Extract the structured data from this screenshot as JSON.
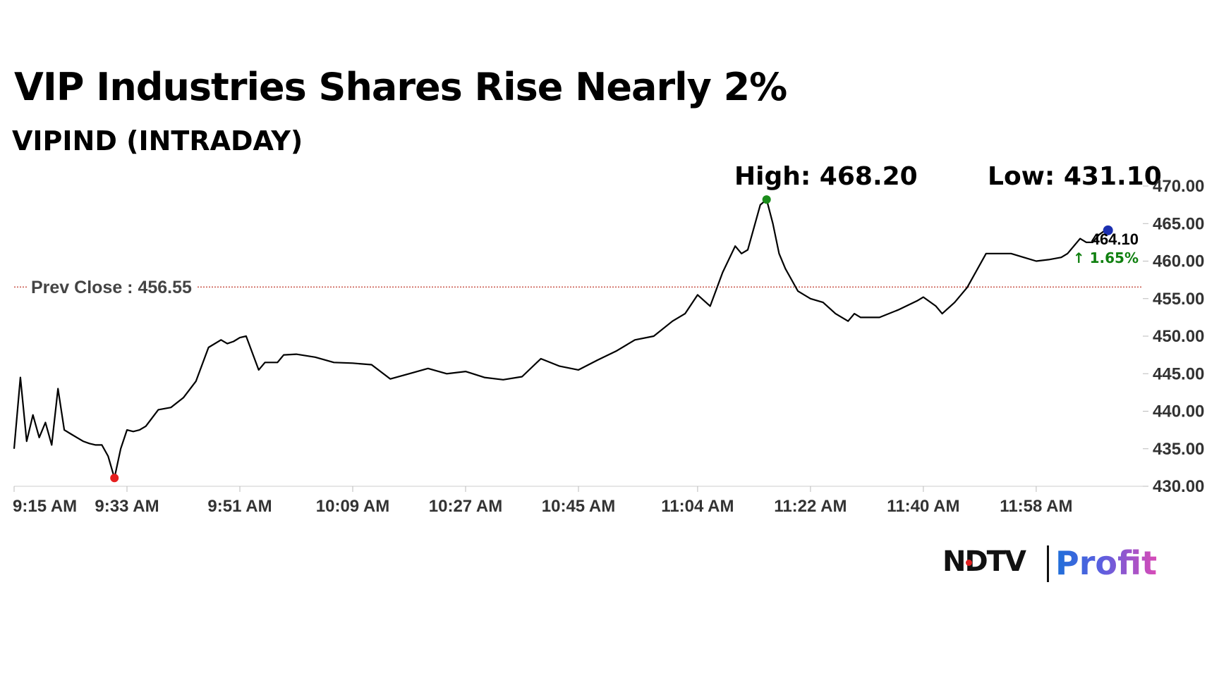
{
  "header": {
    "title": "VIP Industries Shares Rise Nearly 2%",
    "subtitle": "VIPIND (INTRADAY)",
    "high_label": "High: 468.20",
    "low_label": "Low: 431.10"
  },
  "brand": {
    "ndtv": "NDTV",
    "profit": "Profit"
  },
  "colors": {
    "line": "#000000",
    "prev_close": "#c0392b",
    "up": "#108010",
    "high_marker": "#1a8c1a",
    "low_marker": "#e62020",
    "last_marker": "#1b2fb0",
    "axis_text": "#333333"
  },
  "chart_data": {
    "type": "line",
    "title": "VIP Industries Shares Rise Nearly 2%",
    "subtitle": "VIPIND (INTRADAY)",
    "xlabel": "",
    "ylabel": "",
    "ylim": [
      430,
      470
    ],
    "yticks": [
      "470.00",
      "465.00",
      "460.00",
      "455.00",
      "450.00",
      "445.00",
      "440.00",
      "435.00",
      "430.00"
    ],
    "xticks": [
      "9:15 AM",
      "9:33 AM",
      "9:51 AM",
      "10:09 AM",
      "10:27 AM",
      "10:45 AM",
      "11:04 AM",
      "11:22 AM",
      "11:40 AM",
      "11:58 AM"
    ],
    "xtick_minutes": [
      555,
      573,
      591,
      609,
      627,
      645,
      664,
      682,
      700,
      718
    ],
    "x_start": "9:15 AM",
    "prev_close": {
      "label": "Prev Close : 456.55",
      "value": 456.55
    },
    "high": {
      "label": "High: 468.20",
      "value": 468.2,
      "time": "11:15 AM"
    },
    "low": {
      "label": "Low: 431.10",
      "value": 431.1,
      "time": "9:31 AM"
    },
    "last": {
      "price": "464.10",
      "change": "1.65%",
      "direction": "up"
    },
    "grid": false,
    "series": [
      {
        "x": [
          "9:15 AM",
          "9:16 AM",
          "9:17 AM",
          "9:18 AM",
          "9:19 AM",
          "9:20 AM",
          "9:21 AM",
          "9:22 AM",
          "9:23 AM",
          "9:24 AM",
          "9:25 AM",
          "9:26 AM",
          "9:27 AM",
          "9:28 AM",
          "9:29 AM",
          "9:30 AM",
          "9:31 AM",
          "9:32 AM",
          "9:33 AM",
          "9:34 AM",
          "9:35 AM",
          "9:36 AM",
          "9:38 AM",
          "9:40 AM",
          "9:42 AM",
          "9:44 AM",
          "9:46 AM",
          "9:48 AM",
          "9:49 AM",
          "9:50 AM",
          "9:51 AM",
          "9:52 AM",
          "9:54 AM",
          "9:55 AM",
          "9:57 AM",
          "9:58 AM",
          "10:00 AM",
          "10:03 AM",
          "10:06 AM",
          "10:09 AM",
          "10:12 AM",
          "10:15 AM",
          "10:18 AM",
          "10:21 AM",
          "10:24 AM",
          "10:27 AM",
          "10:30 AM",
          "10:33 AM",
          "10:36 AM",
          "10:39 AM",
          "10:42 AM",
          "10:45 AM",
          "10:48 AM",
          "10:51 AM",
          "10:54 AM",
          "10:57 AM",
          "11:00 AM",
          "11:02 AM",
          "11:04 AM",
          "11:06 AM",
          "11:08 AM",
          "11:10 AM",
          "11:11 AM",
          "11:12 AM",
          "11:13 AM",
          "11:14 AM",
          "11:15 AM",
          "11:16 AM",
          "11:17 AM",
          "11:18 AM",
          "11:19 AM",
          "11:20 AM",
          "11:22 AM",
          "11:24 AM",
          "11:26 AM",
          "11:28 AM",
          "11:29 AM",
          "11:30 AM",
          "11:33 AM",
          "11:36 AM",
          "11:39 AM",
          "11:40 AM",
          "11:42 AM",
          "11:43 AM",
          "11:45 AM",
          "11:47 AM",
          "11:49 AM",
          "11:50 AM",
          "11:52 AM",
          "11:54 AM",
          "11:56 AM",
          "11:58 AM",
          "12:00 PM",
          "12:02 PM",
          "12:03 PM",
          "12:04 PM",
          "12:05 PM",
          "12:06 PM",
          "12:07 PM",
          "12:08 PM",
          "12:09 PM"
        ],
        "y": [
          435.0,
          444.5,
          436.0,
          439.5,
          436.5,
          438.5,
          435.5,
          443.0,
          437.5,
          437.0,
          436.5,
          436.0,
          435.7,
          435.5,
          435.5,
          434.0,
          431.1,
          435.0,
          437.5,
          437.3,
          437.5,
          438.0,
          440.2,
          440.5,
          441.8,
          444.0,
          448.5,
          449.5,
          449.0,
          449.3,
          449.8,
          450.0,
          445.5,
          446.5,
          446.5,
          447.5,
          447.6,
          447.2,
          446.5,
          446.4,
          446.2,
          444.3,
          445.0,
          445.7,
          445.0,
          445.3,
          444.5,
          444.2,
          444.6,
          447.0,
          446.0,
          445.5,
          446.8,
          448.0,
          449.5,
          450.0,
          452.0,
          453.0,
          455.5,
          454.0,
          458.5,
          462.0,
          461.0,
          461.5,
          464.5,
          467.5,
          468.2,
          465.0,
          461.0,
          459.0,
          457.5,
          456.0,
          455.0,
          454.5,
          453.0,
          452.0,
          453.0,
          452.5,
          452.5,
          453.5,
          454.7,
          455.2,
          454.0,
          453.0,
          454.5,
          456.5,
          459.5,
          461.0,
          461.0,
          461.0,
          460.5,
          460.0,
          460.2,
          460.5,
          461.0,
          462.0,
          463.0,
          462.5,
          462.5,
          463.5,
          464.1
        ]
      }
    ]
  }
}
